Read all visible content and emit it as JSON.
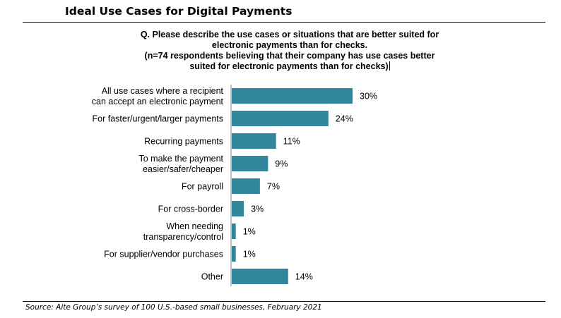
{
  "header": {
    "title": "Ideal Use Cases for Digital Payments"
  },
  "question": {
    "lines": [
      "Q. Please describe the use cases or situations that are better suited for",
      "electronic payments than for checks.",
      "(n=74 respondents believing that their company has use cases better",
      "suited for electronic payments than for checks)"
    ]
  },
  "chart_data": {
    "type": "bar",
    "orientation": "horizontal",
    "categories": [
      [
        "All use cases where a recipient",
        "can accept an electronic payment"
      ],
      [
        "For faster/urgent/larger payments"
      ],
      [
        "Recurring payments"
      ],
      [
        "To make the payment",
        "easier/safer/cheaper"
      ],
      [
        "For payroll"
      ],
      [
        "For cross-border"
      ],
      [
        "When needing",
        "transparency/control"
      ],
      [
        "For supplier/vendor purchases"
      ],
      [
        "Other"
      ]
    ],
    "values": [
      30,
      24,
      11,
      9,
      7,
      3,
      1,
      1,
      14
    ],
    "value_labels": [
      "30%",
      "24%",
      "11%",
      "9%",
      "7%",
      "3%",
      "1%",
      "1%",
      "14%"
    ],
    "unit": "%",
    "xlim": [
      0,
      30
    ],
    "grid": false,
    "bar_color": "#31869B",
    "axis_line": "left"
  },
  "footer": {
    "source": "Source: Aite Group’s survey of 100 U.S.-based small businesses, February 2021"
  }
}
